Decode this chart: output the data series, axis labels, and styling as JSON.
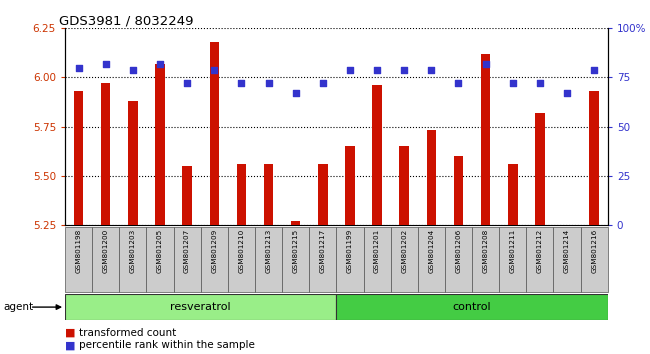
{
  "title": "GDS3981 / 8032249",
  "samples": [
    "GSM801198",
    "GSM801200",
    "GSM801203",
    "GSM801205",
    "GSM801207",
    "GSM801209",
    "GSM801210",
    "GSM801213",
    "GSM801215",
    "GSM801217",
    "GSM801199",
    "GSM801201",
    "GSM801202",
    "GSM801204",
    "GSM801206",
    "GSM801208",
    "GSM801211",
    "GSM801212",
    "GSM801214",
    "GSM801216"
  ],
  "transformed_count": [
    5.93,
    5.97,
    5.88,
    6.07,
    5.55,
    6.18,
    5.56,
    5.56,
    5.27,
    5.56,
    5.65,
    5.96,
    5.65,
    5.73,
    5.6,
    6.12,
    5.56,
    5.82,
    5.25,
    5.93
  ],
  "percentile_rank": [
    80,
    82,
    79,
    82,
    72,
    79,
    72,
    72,
    67,
    72,
    79,
    79,
    79,
    79,
    72,
    82,
    72,
    72,
    67,
    79
  ],
  "ylim_left": [
    5.25,
    6.25
  ],
  "ylim_right": [
    0,
    100
  ],
  "yticks_left": [
    5.25,
    5.5,
    5.75,
    6.0,
    6.25
  ],
  "yticks_right": [
    0,
    25,
    50,
    75,
    100
  ],
  "bar_color": "#cc1100",
  "dot_color": "#3333cc",
  "resveratrol_color": "#99ee88",
  "control_color": "#44cc44",
  "sample_bg_color": "#cccccc",
  "n_res": 10,
  "n_ctl": 10,
  "group1_label": "resveratrol",
  "group2_label": "control",
  "agent_label": "agent",
  "legend1": "transformed count",
  "legend2": "percentile rank within the sample"
}
